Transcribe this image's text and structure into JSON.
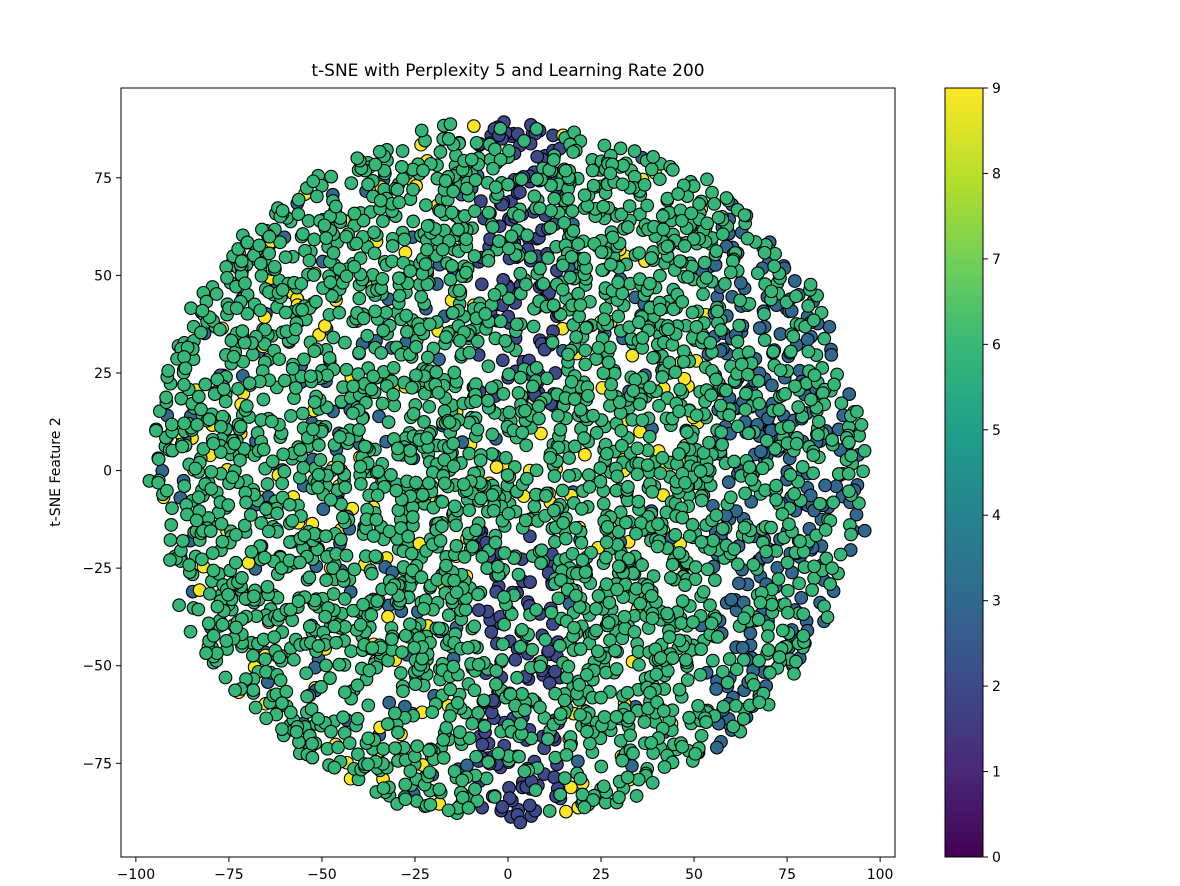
{
  "chart_data": {
    "type": "scatter",
    "title": "t-SNE with Perplexity 5 and Learning Rate 200",
    "xlabel": "",
    "ylabel": "t-SNE Feature 2",
    "xlim": [
      -104,
      104
    ],
    "ylim": [
      -99,
      98
    ],
    "x_ticks": [
      -100,
      -75,
      -50,
      -25,
      0,
      25,
      50,
      75,
      100
    ],
    "y_ticks": [
      -75,
      -50,
      -25,
      0,
      25,
      50,
      75
    ],
    "x_tick_labels": [
      "−100",
      "−75",
      "−50",
      "−25",
      "0",
      "25",
      "50",
      "75",
      "100"
    ],
    "y_tick_labels": [
      "−75",
      "−50",
      "−25",
      "0",
      "25",
      "50",
      "75"
    ],
    "grid": false,
    "colormap": "viridis",
    "color_range": [
      0,
      9
    ],
    "colorbar_ticks": [
      "0",
      "1",
      "2",
      "3",
      "4",
      "5",
      "6",
      "7",
      "8",
      "9"
    ],
    "point_edge_color": "#000000",
    "cloud": {
      "shape": "disc",
      "center": [
        0,
        0
      ],
      "radius_x": 96,
      "radius_y": 89,
      "approx_points": 9000
    },
    "class_values": {
      "dominant": 6,
      "secondary": 3,
      "minor": [
        2,
        9
      ],
      "mixture_note": "mostly class 6 points (green); class 2-3 points (blue) concentrated in a vertical band near x≈0-10 and on the right edge; scattered class 9 points (yellow)"
    }
  }
}
